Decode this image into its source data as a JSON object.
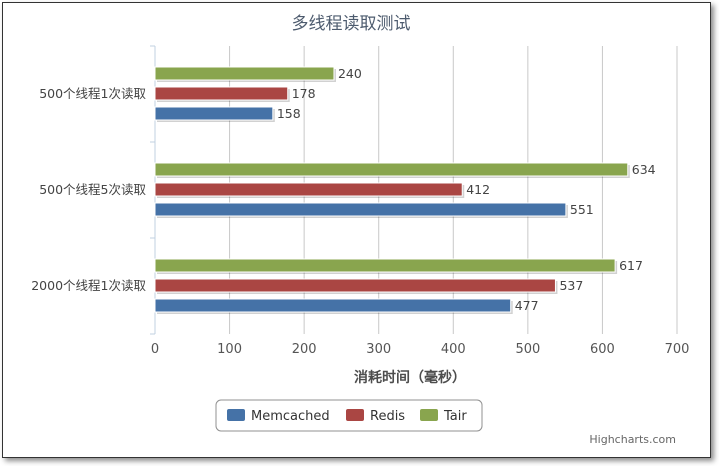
{
  "chart_data": {
    "type": "bar",
    "orientation": "horizontal",
    "title": "多线程读取测试",
    "categories": [
      "500个线程1次读取",
      "500个线程5次读取",
      "2000个线程1次读取"
    ],
    "series": [
      {
        "name": "Memcached",
        "color": "#4572a7",
        "values": [
          158,
          551,
          477
        ]
      },
      {
        "name": "Redis",
        "color": "#aa4643",
        "values": [
          178,
          412,
          537
        ]
      },
      {
        "name": "Tair",
        "color": "#89a54e",
        "values": [
          240,
          634,
          617
        ]
      }
    ],
    "xlabel": "消耗时间（毫秒）",
    "ylabel": "",
    "xlim": [
      0,
      700
    ],
    "ticks": [
      0,
      100,
      200,
      300,
      400,
      500,
      600,
      700
    ],
    "grid": true,
    "legend_position": "bottom-center",
    "data_labels": true
  },
  "credit": "Highcharts.com"
}
